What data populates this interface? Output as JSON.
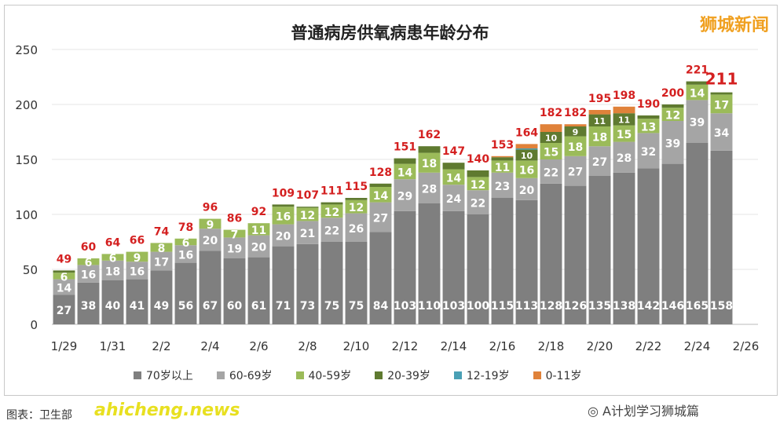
{
  "watermark": "狮城新闻",
  "source": "图表：卫生部",
  "site": "ahicheng.news",
  "wechat": "A计划学习狮城篇",
  "chart_data": {
    "type": "bar",
    "stacked": true,
    "title": "普通病房供氧病患年龄分布",
    "ylim": [
      0,
      250
    ],
    "yticks": [
      "0",
      "50",
      "100",
      "150",
      "200",
      "250"
    ],
    "grid": true,
    "legend_position": "bottom",
    "categories": [
      "1/29",
      "1/30",
      "1/31",
      "2/1",
      "2/2",
      "2/3",
      "2/4",
      "2/5",
      "2/6",
      "2/7",
      "2/8",
      "2/9",
      "2/10",
      "2/11",
      "2/12",
      "2/13",
      "2/14",
      "2/15",
      "2/16",
      "2/17",
      "2/18",
      "2/19",
      "2/20",
      "2/21",
      "2/22",
      "2/23",
      "2/24",
      "2/25"
    ],
    "xtick_labels": [
      "1/29",
      "1/31",
      "2/2",
      "2/4",
      "2/6",
      "2/8",
      "2/10",
      "2/12",
      "2/14",
      "2/16",
      "2/18",
      "2/20",
      "2/22",
      "2/24",
      "2/26"
    ],
    "totals": [
      49,
      60,
      64,
      66,
      74,
      78,
      96,
      86,
      92,
      109,
      107,
      111,
      115,
      128,
      151,
      162,
      147,
      140,
      153,
      164,
      182,
      182,
      195,
      198,
      190,
      200,
      221,
      211
    ],
    "series": [
      {
        "name": "70岁以上",
        "color": "#7f7f7f",
        "values": [
          27,
          38,
          40,
          41,
          49,
          56,
          67,
          60,
          61,
          71,
          73,
          75,
          75,
          84,
          103,
          110,
          103,
          100,
          115,
          113,
          128,
          126,
          135,
          138,
          142,
          146,
          165,
          158
        ]
      },
      {
        "name": "60-69岁",
        "color": "#a5a5a5",
        "values": [
          14,
          16,
          18,
          16,
          17,
          16,
          20,
          19,
          20,
          20,
          21,
          22,
          26,
          27,
          29,
          28,
          24,
          22,
          23,
          20,
          22,
          27,
          27,
          28,
          32,
          39,
          39,
          34
        ]
      },
      {
        "name": "40-59岁",
        "color": "#9bbb59",
        "values": [
          6,
          6,
          6,
          9,
          8,
          6,
          9,
          7,
          11,
          16,
          12,
          12,
          12,
          14,
          14,
          18,
          14,
          12,
          11,
          16,
          15,
          18,
          18,
          15,
          13,
          12,
          14,
          17
        ]
      },
      {
        "name": "20-39岁",
        "color": "#5f7a30",
        "values": [
          2,
          0,
          0,
          0,
          0,
          0,
          0,
          0,
          0,
          2,
          1,
          2,
          2,
          3,
          5,
          6,
          6,
          6,
          3,
          10,
          10,
          9,
          11,
          11,
          3,
          3,
          3,
          2
        ]
      },
      {
        "name": "12-19岁",
        "color": "#4aa0b5",
        "values": [
          0,
          0,
          0,
          0,
          0,
          0,
          0,
          0,
          0,
          0,
          0,
          0,
          0,
          0,
          0,
          0,
          0,
          0,
          0,
          1,
          0,
          0,
          0,
          0,
          0,
          0,
          0,
          0
        ]
      },
      {
        "name": "0-11岁",
        "color": "#e0823a",
        "values": [
          0,
          0,
          0,
          0,
          0,
          0,
          0,
          0,
          0,
          0,
          0,
          0,
          0,
          0,
          0,
          0,
          0,
          0,
          1,
          4,
          7,
          2,
          4,
          6,
          0,
          0,
          0,
          0
        ]
      }
    ]
  }
}
